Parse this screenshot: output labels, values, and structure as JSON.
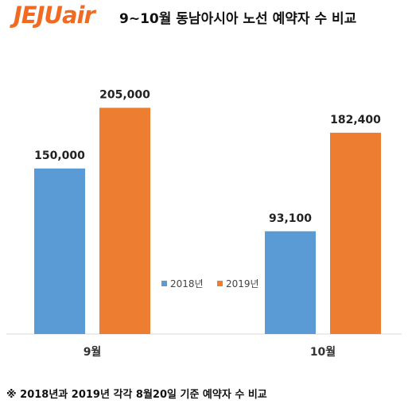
{
  "header": {
    "logo_text": "JEJUair",
    "title": "9~10월 동남아시아 노선 예약자 수 비교"
  },
  "footnote": "※ 2018년과 2019년 각각 8월20일 기준 예약자 수 비교",
  "colors": {
    "series_2018": "#5b9bd5",
    "series_2019": "#ed7d31",
    "logo": "#f26a21"
  },
  "chart_data": {
    "type": "bar",
    "categories": [
      "9월",
      "10월"
    ],
    "series": [
      {
        "name": "2018년",
        "values": [
          150000,
          93100
        ],
        "labels": [
          "150,000",
          "93,100"
        ]
      },
      {
        "name": "2019년",
        "values": [
          205000,
          182400
        ],
        "labels": [
          "205,000",
          "182,400"
        ]
      }
    ],
    "ylim": [
      0,
      245000
    ],
    "grid": false,
    "legend": "center"
  }
}
